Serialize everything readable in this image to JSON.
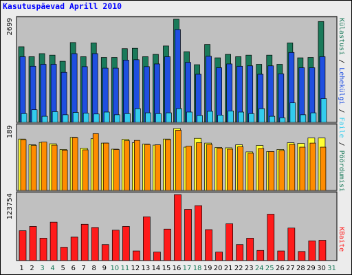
{
  "title": "Kasutuspäevad Aprill 2010",
  "colors": {
    "visits": "#1a7a5a",
    "pages": "#1f4fe0",
    "hits": "#33ccee",
    "files": "#ff8c00",
    "hosts": "#ffff33",
    "bytes": "#ff1a1a",
    "weekday_label": "#000000",
    "weekend_label": "#1a7a5a",
    "panel_bg": "#c0c0c0",
    "frame_bg": "#ececec"
  },
  "chart_data": [
    {
      "type": "bar",
      "panel": "top",
      "y_tick_label": "2699",
      "ylim": [
        0,
        2699
      ],
      "categories": [
        "1",
        "2",
        "3",
        "4",
        "5",
        "6",
        "7",
        "8",
        "9",
        "10",
        "11",
        "12",
        "13",
        "14",
        "15",
        "16",
        "17",
        "18",
        "19",
        "20",
        "21",
        "22",
        "23",
        "24",
        "25",
        "26",
        "27",
        "28",
        "29",
        "30"
      ],
      "legend": {
        "visits": "Külastusi",
        "pages": "Lehekülgi",
        "hits": "Faile",
        "files": "Pöördumisi",
        "sep": " / "
      },
      "series": [
        {
          "key": "visits",
          "values": [
            1980,
            1720,
            1800,
            1760,
            1600,
            2090,
            1720,
            2080,
            1700,
            1700,
            1930,
            1940,
            1720,
            1780,
            2000,
            2700,
            1850,
            1510,
            2040,
            1690,
            1780,
            1720,
            1760,
            1520,
            1760,
            1520,
            2080,
            1690,
            1700,
            2640
          ]
        },
        {
          "key": "pages",
          "values": [
            1720,
            1470,
            1520,
            1520,
            1310,
            1800,
            1460,
            1800,
            1420,
            1420,
            1630,
            1640,
            1460,
            1530,
            1720,
            2430,
            1570,
            1260,
            1730,
            1430,
            1530,
            1470,
            1480,
            1260,
            1480,
            1270,
            1830,
            1430,
            1430,
            1720
          ]
        },
        {
          "key": "hits",
          "values": [
            230,
            330,
            160,
            280,
            200,
            260,
            240,
            220,
            270,
            200,
            230,
            360,
            250,
            230,
            250,
            360,
            270,
            180,
            290,
            190,
            300,
            270,
            230,
            360,
            160,
            120,
            510,
            200,
            250,
            620
          ]
        }
      ]
    },
    {
      "type": "bar",
      "panel": "middle",
      "y_tick_label": "189",
      "ylim": [
        0,
        189
      ],
      "series": [
        {
          "key": "hosts",
          "values": [
            152,
            135,
            142,
            138,
            121,
            157,
            125,
            153,
            140,
            122,
            151,
            141,
            137,
            134,
            152,
            183,
            128,
            154,
            140,
            127,
            126,
            135,
            114,
            133,
            115,
            121,
            141,
            139,
            155,
            155
          ]
        },
        {
          "key": "files",
          "values": [
            150,
            133,
            143,
            134,
            119,
            156,
            120,
            168,
            140,
            121,
            147,
            148,
            136,
            135,
            150,
            178,
            131,
            141,
            136,
            125,
            122,
            129,
            110,
            124,
            115,
            118,
            136,
            128,
            140,
            128
          ]
        }
      ]
    },
    {
      "type": "bar",
      "panel": "bottom",
      "y_tick_label": "123754",
      "ylim": [
        0,
        123754
      ],
      "legend": {
        "bytes": "KBaite"
      },
      "series": [
        {
          "key": "bytes",
          "values": [
            56000,
            64000,
            42000,
            72000,
            25000,
            44000,
            68000,
            62000,
            30000,
            57000,
            64000,
            18000,
            82000,
            16000,
            59000,
            123754,
            96000,
            103000,
            58000,
            16000,
            69000,
            30000,
            42000,
            19000,
            87000,
            18000,
            61000,
            17000,
            37000,
            38000
          ]
        }
      ]
    }
  ],
  "x_labels": [
    "1",
    "2",
    "3",
    "4",
    "5",
    "6",
    "7",
    "8",
    "9",
    "10",
    "11",
    "12",
    "13",
    "14",
    "15",
    "16",
    "17",
    "18",
    "19",
    "20",
    "21",
    "22",
    "23",
    "24",
    "25",
    "26",
    "27",
    "28",
    "29",
    "30",
    "31"
  ],
  "weekend_days": [
    3,
    4,
    10,
    11,
    17,
    18,
    24,
    25,
    31
  ]
}
